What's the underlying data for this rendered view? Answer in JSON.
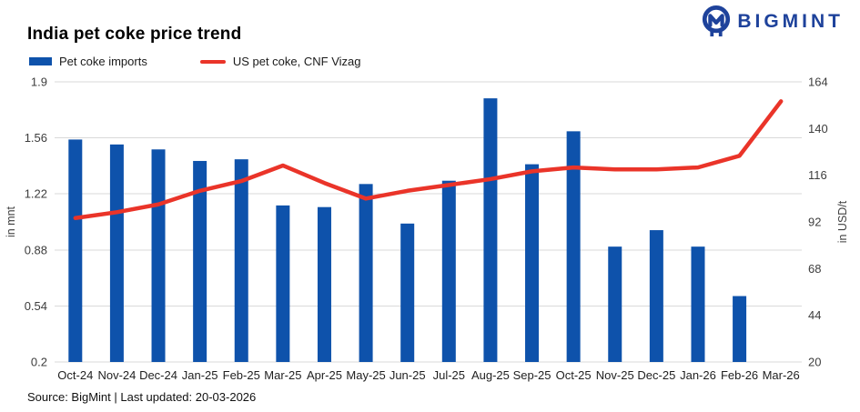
{
  "header": {
    "title": "India pet coke price trend",
    "logo_text": "BIGMINT",
    "brand_color": "#1e429b"
  },
  "legend": [
    {
      "label": "Pet coke imports",
      "type": "bar",
      "color": "#0e52ab"
    },
    {
      "label": "US pet coke, CNF Vizag",
      "type": "line",
      "color": "#ea3429"
    }
  ],
  "footer": {
    "source": "Source: BigMint | Last updated: 20-03-2026"
  },
  "chart_data": {
    "type": "bar+line",
    "title": "India pet coke price trend",
    "categories": [
      "Oct-24",
      "Nov-24",
      "Dec-24",
      "Jan-25",
      "Feb-25",
      "Mar-25",
      "Apr-25",
      "May-25",
      "Jun-25",
      "Jul-25",
      "Aug-25",
      "Sep-25",
      "Oct-25",
      "Nov-25",
      "Dec-25",
      "Jan-26",
      "Feb-26",
      "Mar-26"
    ],
    "series": [
      {
        "name": "Pet coke imports",
        "type": "bar",
        "axis": "left",
        "color": "#0e52ab",
        "values": [
          1.55,
          1.52,
          1.49,
          1.42,
          1.43,
          1.15,
          1.14,
          1.28,
          1.04,
          1.3,
          1.8,
          1.4,
          1.6,
          0.9,
          1.0,
          0.9,
          0.6,
          null
        ]
      },
      {
        "name": "US pet coke, CNF Vizag",
        "type": "line",
        "axis": "right",
        "color": "#ea3429",
        "values": [
          94,
          97,
          101,
          108,
          113,
          121,
          112,
          104,
          108,
          111,
          114,
          118,
          120,
          119,
          119,
          120,
          126,
          154
        ]
      }
    ],
    "left_axis": {
      "title": "in mnt",
      "min": 0.2,
      "max": 1.9,
      "ticks": [
        "1.9",
        "1.56",
        "1.22",
        "0.88",
        "0.54",
        "0.2"
      ]
    },
    "right_axis": {
      "title": "in USD/t",
      "min": 20,
      "max": 164,
      "ticks": [
        "164",
        "140",
        "116",
        "92",
        "68",
        "44",
        "20"
      ]
    },
    "grid": true,
    "gridline_color": "#d9d9d9",
    "legend_position": "top-left"
  }
}
